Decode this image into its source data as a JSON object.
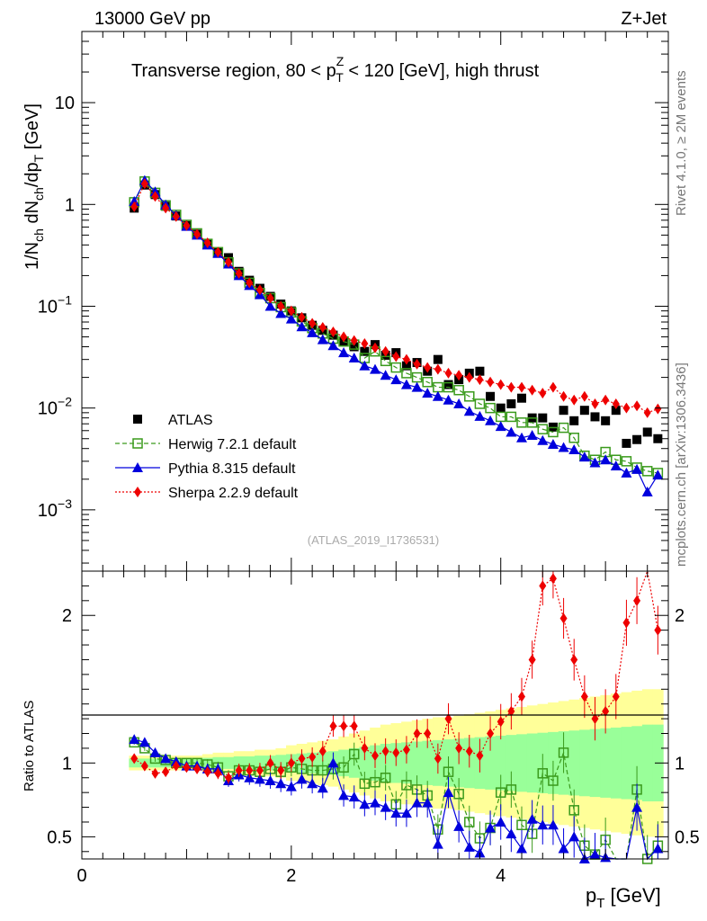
{
  "header": {
    "left": "13000 GeV pp",
    "right": "Z+Jet",
    "title_pre": "Transverse region, 80 < p",
    "title_sup": "Z",
    "title_sub": "T",
    "title_post": " < 120 [GeV], high thrust"
  },
  "side": {
    "rivet": "Rivet 4.1.0, ≥ 2M events",
    "mcplots": "mcplots.cern.ch [arXiv:1306.3436]"
  },
  "watermark": "(ATLAS_2019_I1736531)",
  "ylabel_top": "1/N_ch dN_ch/dp_T [GeV]",
  "ylabel_bottom": "Ratio to ATLAS",
  "xlabel": "p_T [GeV]",
  "colors": {
    "atlas": "#000000",
    "herwig": "#3a9a1c",
    "pythia": "#0000dd",
    "sherpa": "#ee0000",
    "band_yellow": "#ffff99",
    "band_green": "#99ff99"
  },
  "chart_data": [
    {
      "type": "scatter",
      "title": "Transverse region, 80 < pT^Z < 120 [GeV], high thrust",
      "xlabel": "pT [GeV]",
      "ylabel": "1/Nch dNch/dpT [GeV]",
      "yscale": "log",
      "xlim": [
        0,
        5.6
      ],
      "ylim": [
        0.00025,
        50
      ],
      "yticks": [
        {
          "value": 10,
          "base": "10",
          "exp": ""
        },
        {
          "value": 1,
          "base": "1",
          "exp": ""
        },
        {
          "value": 0.1,
          "base": "10",
          "exp": "−1"
        },
        {
          "value": 0.01,
          "base": "10",
          "exp": "−2"
        },
        {
          "value": 0.001,
          "base": "10",
          "exp": "−3"
        }
      ],
      "x": [
        0.5,
        0.6,
        0.7,
        0.8,
        0.9,
        1.0,
        1.1,
        1.2,
        1.3,
        1.4,
        1.5,
        1.6,
        1.7,
        1.8,
        1.9,
        2.0,
        2.1,
        2.2,
        2.3,
        2.4,
        2.5,
        2.6,
        2.7,
        2.8,
        2.9,
        3.0,
        3.1,
        3.2,
        3.3,
        3.4,
        3.5,
        3.6,
        3.7,
        3.8,
        3.9,
        4.0,
        4.1,
        4.2,
        4.3,
        4.4,
        4.5,
        4.6,
        4.7,
        4.8,
        4.9,
        5.0,
        5.1,
        5.2,
        5.3,
        5.4,
        5.5
      ],
      "series": [
        {
          "name": "ATLAS",
          "marker": "square",
          "values": [
            0.92,
            1.55,
            1.25,
            0.96,
            0.77,
            0.62,
            0.51,
            0.41,
            0.34,
            0.3,
            0.22,
            0.18,
            0.15,
            0.125,
            0.105,
            0.09,
            0.077,
            0.065,
            0.058,
            0.052,
            0.045,
            0.04,
            0.036,
            0.042,
            0.033,
            0.035,
            0.026,
            0.028,
            0.023,
            0.03,
            0.017,
            0.019,
            0.022,
            0.023,
            0.013,
            0.01,
            0.011,
            0.0125,
            0.008,
            0.008,
            0.0065,
            0.0095,
            0.0075,
            0.0095,
            0.0082,
            0.0075,
            0.0095,
            0.0045,
            0.0049,
            0.0058,
            0.005
          ]
        },
        {
          "name": "Herwig 7.2.1 default",
          "marker": "open-square",
          "line": "dashed",
          "values": [
            1.05,
            1.68,
            1.3,
            0.98,
            0.79,
            0.63,
            0.52,
            0.41,
            0.34,
            0.27,
            0.21,
            0.17,
            0.135,
            0.12,
            0.098,
            0.087,
            0.071,
            0.061,
            0.054,
            0.048,
            0.045,
            0.042,
            0.031,
            0.036,
            0.029,
            0.025,
            0.022,
            0.02,
            0.018,
            0.016,
            0.016,
            0.015,
            0.013,
            0.011,
            0.01,
            0.0082,
            0.0082,
            0.0072,
            0.0072,
            0.0062,
            0.0058,
            0.0064,
            0.0051,
            0.0034,
            0.0031,
            0.0037,
            0.0031,
            0.003,
            0.0026,
            0.0024,
            0.0023
          ]
        },
        {
          "name": "Pythia 8.315 default",
          "marker": "triangle",
          "line": "solid",
          "values": [
            1.07,
            1.72,
            1.33,
            0.99,
            0.78,
            0.61,
            0.5,
            0.4,
            0.33,
            0.26,
            0.2,
            0.16,
            0.13,
            0.1,
            0.085,
            0.075,
            0.063,
            0.055,
            0.047,
            0.041,
            0.035,
            0.031,
            0.026,
            0.024,
            0.021,
            0.019,
            0.017,
            0.016,
            0.014,
            0.013,
            0.012,
            0.011,
            0.0093,
            0.0083,
            0.0075,
            0.0066,
            0.0058,
            0.0051,
            0.0054,
            0.0048,
            0.0044,
            0.0041,
            0.0039,
            0.0033,
            0.0029,
            0.0031,
            0.0027,
            0.0023,
            0.0025,
            0.0015,
            0.0022
          ]
        },
        {
          "name": "Sherpa 2.2.9 default",
          "marker": "diamond",
          "line": "dotted",
          "values": [
            0.95,
            1.6,
            1.2,
            0.92,
            0.76,
            0.62,
            0.51,
            0.42,
            0.34,
            0.27,
            0.21,
            0.17,
            0.145,
            0.12,
            0.1,
            0.09,
            0.078,
            0.068,
            0.062,
            0.056,
            0.05,
            0.046,
            0.043,
            0.039,
            0.036,
            0.032,
            0.03,
            0.027,
            0.025,
            0.024,
            0.022,
            0.021,
            0.02,
            0.019,
            0.018,
            0.017,
            0.016,
            0.016,
            0.015,
            0.014,
            0.016,
            0.013,
            0.012,
            0.013,
            0.011,
            0.012,
            0.011,
            0.01,
            0.0105,
            0.009,
            0.0098
          ]
        }
      ],
      "legend": [
        {
          "label": "ATLAS",
          "series": 0
        },
        {
          "label": "Herwig 7.2.1 default",
          "series": 1
        },
        {
          "label": "Pythia 8.315 default",
          "series": 2
        },
        {
          "label": "Sherpa 2.2.9 default",
          "series": 3
        }
      ],
      "legend_position": "bottom-left"
    },
    {
      "type": "scatter",
      "ylabel": "Ratio to ATLAS",
      "xlabel": "pT [GeV]",
      "xlim": [
        0,
        5.6
      ],
      "ylim": [
        0.35,
        2.3
      ],
      "xticks": [
        {
          "value": 0,
          "label": "0"
        },
        {
          "value": 2,
          "label": "2"
        },
        {
          "value": 4,
          "label": "4"
        }
      ],
      "yticks": [
        {
          "value": 0.5,
          "label": "0.5"
        },
        {
          "value": 1,
          "label": "1"
        },
        {
          "value": 2,
          "label": "2"
        }
      ],
      "band_yellow_halfwidth": [
        0.05,
        0.05,
        0.05,
        0.05,
        0.05,
        0.05,
        0.05,
        0.06,
        0.07,
        0.07,
        0.08,
        0.08,
        0.09,
        0.09,
        0.1,
        0.12,
        0.13,
        0.14,
        0.15,
        0.16,
        0.18,
        0.2,
        0.22,
        0.24,
        0.26,
        0.27,
        0.28,
        0.29,
        0.3,
        0.31,
        0.31,
        0.32,
        0.33,
        0.34,
        0.35,
        0.36,
        0.37,
        0.38,
        0.39,
        0.4,
        0.41,
        0.42,
        0.43,
        0.44,
        0.45,
        0.46,
        0.47,
        0.48,
        0.49,
        0.5,
        0.5
      ],
      "band_green_halfwidth": [
        0.03,
        0.03,
        0.03,
        0.03,
        0.03,
        0.03,
        0.03,
        0.035,
        0.04,
        0.04,
        0.045,
        0.045,
        0.05,
        0.05,
        0.055,
        0.06,
        0.065,
        0.07,
        0.075,
        0.08,
        0.09,
        0.1,
        0.11,
        0.12,
        0.13,
        0.135,
        0.14,
        0.145,
        0.15,
        0.155,
        0.16,
        0.165,
        0.17,
        0.175,
        0.18,
        0.185,
        0.19,
        0.195,
        0.2,
        0.205,
        0.21,
        0.215,
        0.22,
        0.225,
        0.23,
        0.235,
        0.24,
        0.245,
        0.25,
        0.26,
        0.26
      ],
      "series": [
        {
          "name": "Herwig 7.2.1 default",
          "values": [
            1.14,
            1.1,
            1.03,
            1.02,
            1.0,
            1.0,
            1.0,
            0.99,
            0.97,
            0.91,
            0.95,
            0.95,
            0.94,
            0.96,
            0.94,
            0.97,
            0.96,
            0.95,
            0.95,
            0.96,
            0.97,
            1.06,
            0.86,
            0.87,
            0.9,
            0.72,
            0.85,
            0.82,
            0.78,
            0.55,
            0.94,
            0.79,
            0.6,
            0.49,
            0.56,
            0.8,
            0.82,
            0.58,
            0.52,
            0.93,
            0.88,
            1.07,
            0.68,
            0.44,
            0.38,
            0.48,
            0.33,
            0.3,
            0.82,
            0.35,
            0.44
          ]
        },
        {
          "name": "Pythia 8.315 default",
          "values": [
            1.16,
            1.14,
            1.07,
            1.03,
            1.01,
            0.98,
            0.98,
            0.96,
            0.96,
            0.88,
            0.92,
            0.9,
            0.89,
            0.88,
            0.86,
            0.84,
            0.89,
            0.86,
            0.83,
            1.0,
            0.78,
            0.77,
            0.72,
            0.73,
            0.7,
            0.66,
            0.66,
            0.73,
            0.73,
            0.45,
            0.8,
            0.57,
            0.43,
            0.39,
            0.56,
            0.6,
            0.52,
            0.42,
            0.62,
            0.58,
            0.58,
            0.42,
            0.5,
            0.35,
            0.38,
            0.36,
            0.3,
            0.31,
            0.7,
            0.31,
            0.42
          ]
        },
        {
          "name": "Sherpa 2.2.9 default",
          "values": [
            1.03,
            0.98,
            0.93,
            0.94,
            0.98,
            0.97,
            0.96,
            0.94,
            0.93,
            0.9,
            0.95,
            0.95,
            0.95,
            1.0,
            0.95,
            1.0,
            1.03,
            1.04,
            1.08,
            1.25,
            1.25,
            1.25,
            1.1,
            1.05,
            1.08,
            1.07,
            1.09,
            1.2,
            1.2,
            1.03,
            1.3,
            1.1,
            1.08,
            1.05,
            1.2,
            1.28,
            1.35,
            1.45,
            1.7,
            2.2,
            2.25,
            1.98,
            1.7,
            1.45,
            1.3,
            1.35,
            1.45,
            1.95,
            2.1,
            2.35,
            1.9
          ]
        }
      ]
    }
  ]
}
